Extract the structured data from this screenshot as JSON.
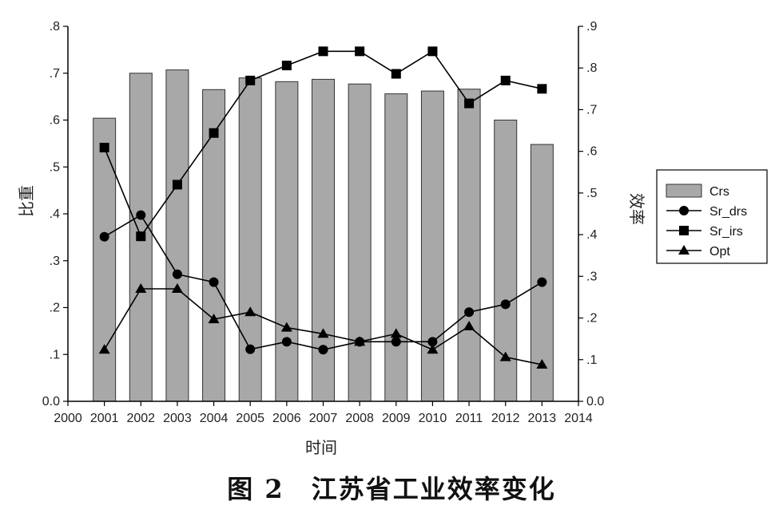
{
  "caption": "图 2　江苏省工业效率变化",
  "chart_data": {
    "type": "bar",
    "x": [
      2001,
      2002,
      2003,
      2004,
      2005,
      2006,
      2007,
      2008,
      2009,
      2010,
      2011,
      2012,
      2013
    ],
    "xlim": [
      2000,
      2014
    ],
    "x_ticks": [
      "2000",
      "2001",
      "2002",
      "2003",
      "2004",
      "2005",
      "2006",
      "2007",
      "2008",
      "2009",
      "2010",
      "2011",
      "2012",
      "2013",
      "2014"
    ],
    "xlabel": "时间",
    "ylabel_left": "比重",
    "ylabel_right": "效率",
    "ylim_left": [
      0,
      0.8
    ],
    "ylim_right": [
      0,
      0.9
    ],
    "left_ticks": [
      {
        "v": 0.0,
        "label": "0.0"
      },
      {
        "v": 0.1,
        "label": ".1"
      },
      {
        "v": 0.2,
        "label": ".2"
      },
      {
        "v": 0.3,
        "label": ".3"
      },
      {
        "v": 0.4,
        "label": ".4"
      },
      {
        "v": 0.5,
        "label": ".5"
      },
      {
        "v": 0.6,
        "label": ".6"
      },
      {
        "v": 0.7,
        "label": ".7"
      },
      {
        "v": 0.8,
        "label": ".8"
      }
    ],
    "right_ticks": [
      {
        "v": 0.0,
        "label": "0.0"
      },
      {
        "v": 0.1,
        "label": ".1"
      },
      {
        "v": 0.2,
        "label": ".2"
      },
      {
        "v": 0.3,
        "label": ".3"
      },
      {
        "v": 0.4,
        "label": ".4"
      },
      {
        "v": 0.5,
        "label": ".5"
      },
      {
        "v": 0.6,
        "label": ".6"
      },
      {
        "v": 0.7,
        "label": ".7"
      },
      {
        "v": 0.8,
        "label": ".8"
      },
      {
        "v": 0.9,
        "label": ".9"
      }
    ],
    "legend_position": "right",
    "grid": false,
    "series": [
      {
        "name": "Crs",
        "type": "bar",
        "axis": "left",
        "color": "#a8a8a8",
        "values": [
          0.604,
          0.7,
          0.707,
          0.665,
          0.69,
          0.682,
          0.687,
          0.677,
          0.656,
          0.662,
          0.666,
          0.6,
          0.548
        ]
      },
      {
        "name": "Sr_drs",
        "type": "line",
        "axis": "right",
        "marker": "circle",
        "values": [
          0.395,
          0.447,
          0.305,
          0.286,
          0.125,
          0.143,
          0.124,
          0.143,
          0.143,
          0.143,
          0.214,
          0.233,
          0.286
        ]
      },
      {
        "name": "Sr_irs",
        "type": "line",
        "axis": "right",
        "marker": "square",
        "values": [
          0.609,
          0.396,
          0.52,
          0.644,
          0.77,
          0.806,
          0.84,
          0.84,
          0.786,
          0.84,
          0.715,
          0.77,
          0.75
        ]
      },
      {
        "name": "Opt",
        "type": "line",
        "axis": "right",
        "marker": "triangle",
        "values": [
          0.124,
          0.27,
          0.27,
          0.197,
          0.214,
          0.177,
          0.162,
          0.143,
          0.162,
          0.124,
          0.18,
          0.106,
          0.088
        ]
      }
    ]
  }
}
